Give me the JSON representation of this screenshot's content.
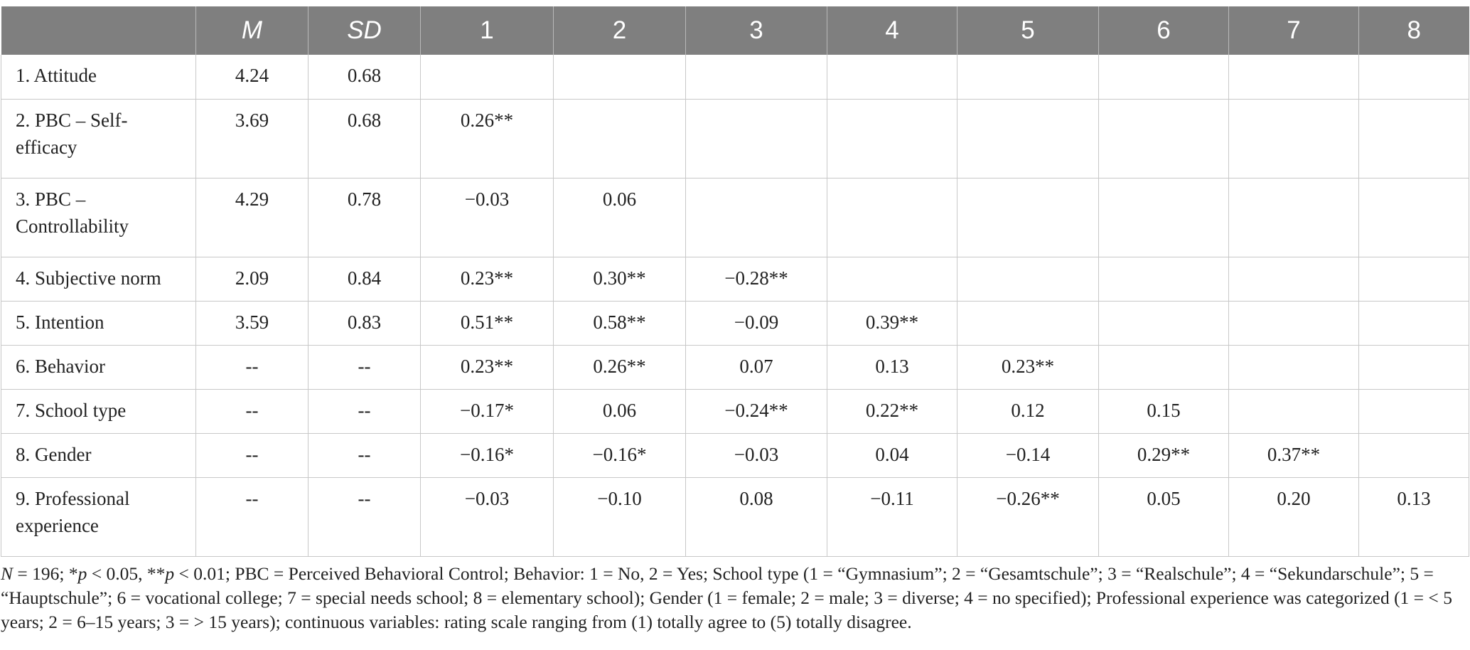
{
  "table": {
    "headers": [
      "",
      "M",
      "SD",
      "1",
      "2",
      "3",
      "4",
      "5",
      "6",
      "7",
      "8"
    ],
    "rows": [
      [
        "1. Attitude",
        "4.24",
        "0.68",
        "",
        "",
        "",
        "",
        "",
        "",
        "",
        ""
      ],
      [
        "2. PBC – Self-efficacy",
        "3.69",
        "0.68",
        "0.26**",
        "",
        "",
        "",
        "",
        "",
        "",
        ""
      ],
      [
        "3. PBC – Controllability",
        "4.29",
        "0.78",
        "−0.03",
        "0.06",
        "",
        "",
        "",
        "",
        "",
        ""
      ],
      [
        "4. Subjective norm",
        "2.09",
        "0.84",
        "0.23**",
        "0.30**",
        "−0.28**",
        "",
        "",
        "",
        "",
        ""
      ],
      [
        "5. Intention",
        "3.59",
        "0.83",
        "0.51**",
        "0.58**",
        "−0.09",
        "0.39**",
        "",
        "",
        "",
        ""
      ],
      [
        "6. Behavior",
        "--",
        "--",
        "0.23**",
        "0.26**",
        "0.07",
        "0.13",
        "0.23**",
        "",
        "",
        ""
      ],
      [
        "7. School type",
        "--",
        "--",
        "−0.17*",
        "0.06",
        "−0.24**",
        "0.22**",
        "0.12",
        "0.15",
        "",
        ""
      ],
      [
        "8. Gender",
        "--",
        "--",
        "−0.16*",
        "−0.16*",
        "−0.03",
        "0.04",
        "−0.14",
        "0.29**",
        "0.37**",
        ""
      ],
      [
        "9. Professional experience",
        "--",
        "--",
        "−0.03",
        "−0.10",
        "0.08",
        "−0.11",
        "−0.26**",
        "0.05",
        "0.20",
        "0.13"
      ]
    ],
    "row_label_lines": [
      [
        "1. Attitude"
      ],
      [
        "2. PBC – Self-",
        "efficacy"
      ],
      [
        "3. PBC –",
        "Controllability"
      ],
      [
        "4. Subjective norm"
      ],
      [
        "5. Intention"
      ],
      [
        "6. Behavior"
      ],
      [
        "7. School type"
      ],
      [
        "8. Gender"
      ],
      [
        "9. Professional",
        "experience"
      ]
    ]
  },
  "note": {
    "n_label": "N",
    "n_text": " = 196; *",
    "p1_label": "p",
    "p1_text": " < 0.05, **",
    "p2_label": "p",
    "rest": " < 0.01; PBC = Perceived Behavioral Control; Behavior: 1 = No, 2 = Yes; School type (1 = “Gymnasium”; 2 = “Gesamtschule”; 3 = “Realschule”; 4 = “Sekundarschule”; 5 = “Hauptschule”; 6 = vocational college; 7 = special needs school; 8 = elementary school); Gender (1 = female; 2 = male; 3 = diverse; 4 = no specified); Professional experience was categorized (1 = < 5 years; 2 = 6–15 years; 3 = > 15 years); continuous variables: rating scale ranging from (1) totally agree to (5) totally disagree."
  }
}
